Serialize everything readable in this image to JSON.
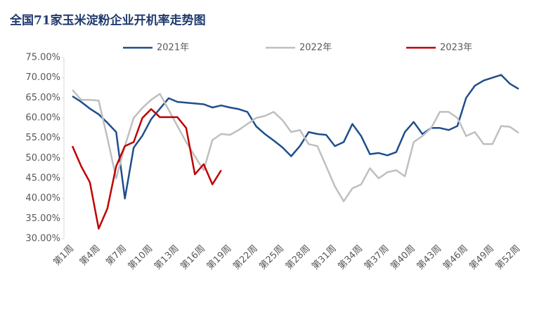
{
  "chart_data": {
    "type": "line",
    "title": "全国71家玉米淀粉企业开机率走势图",
    "categories": [
      "第1周",
      null,
      null,
      "第4周",
      null,
      null,
      "第7周",
      null,
      null,
      "第10周",
      null,
      null,
      "第13周",
      null,
      null,
      "第16周",
      null,
      null,
      "第19周",
      null,
      null,
      "第22周",
      null,
      null,
      "第25周",
      null,
      null,
      "第28周",
      null,
      null,
      "第31周",
      null,
      null,
      "第34周",
      null,
      null,
      "第37周",
      null,
      null,
      "第40周",
      null,
      null,
      "第43周",
      null,
      null,
      "第46周",
      null,
      null,
      "第49周",
      null,
      null,
      "第52周"
    ],
    "series": [
      {
        "name": "2021年",
        "color": "#1f4e8c",
        "values": [
          65.4,
          64.0,
          62.3,
          60.9,
          58.8,
          56.5,
          40.0,
          52.6,
          55.6,
          59.7,
          62.3,
          64.9,
          64.0,
          63.8,
          63.6,
          63.4,
          62.6,
          63.1,
          62.6,
          62.2,
          61.5,
          57.9,
          56.0,
          54.4,
          52.7,
          50.5,
          53.0,
          56.5,
          56.0,
          55.8,
          53.0,
          54.0,
          58.5,
          55.5,
          51.0,
          51.3,
          50.7,
          51.5,
          56.5,
          59.0,
          56.0,
          57.5,
          57.5,
          57.0,
          58.0,
          65.0,
          68.0,
          69.3,
          70.0,
          70.7,
          68.5,
          67.2
        ]
      },
      {
        "name": "2022年",
        "color": "#bfbfbf",
        "values": [
          67.0,
          64.5,
          64.5,
          64.3,
          55.0,
          45.0,
          53.0,
          60.0,
          62.5,
          64.5,
          66.0,
          62.0,
          58.0,
          54.0,
          50.5,
          47.0,
          54.5,
          56.0,
          55.8,
          57.0,
          58.5,
          60.0,
          60.5,
          61.5,
          59.5,
          56.5,
          57.0,
          53.5,
          53.0,
          48.0,
          43.0,
          39.3,
          42.5,
          43.5,
          47.5,
          45.0,
          46.5,
          47.0,
          45.5,
          54.0,
          55.5,
          57.5,
          61.5,
          61.5,
          60.0,
          55.5,
          56.5,
          53.5,
          53.5,
          58.0,
          57.8,
          56.3
        ]
      },
      {
        "name": "2023年",
        "color": "#c00000",
        "values": [
          53.0,
          48.0,
          44.0,
          32.5,
          37.5,
          48.0,
          53.0,
          54.0,
          60.0,
          62.2,
          60.2,
          60.2,
          60.2,
          57.5,
          46.0,
          48.5,
          43.5,
          47.0,
          null,
          null,
          null,
          null,
          null,
          null,
          null,
          null,
          null,
          null,
          null,
          null,
          null,
          null,
          null,
          null,
          null,
          null,
          null,
          null,
          null,
          null,
          null,
          null,
          null,
          null,
          null,
          null,
          null,
          null,
          null,
          null,
          null,
          null
        ]
      }
    ],
    "ylim": [
      30,
      75
    ],
    "yticks": [
      {
        "value": 30,
        "label": "30.00%"
      },
      {
        "value": 35,
        "label": "35.00%"
      },
      {
        "value": 40,
        "label": "40.00%"
      },
      {
        "value": 45,
        "label": "45.00%"
      },
      {
        "value": 50,
        "label": "50.00%"
      },
      {
        "value": 55,
        "label": "55.00%"
      },
      {
        "value": 60,
        "label": "60.00%"
      },
      {
        "value": 65,
        "label": "65.00%"
      },
      {
        "value": 70,
        "label": "70.00%"
      },
      {
        "value": 75,
        "label": "75.00%"
      }
    ],
    "legend": "top",
    "grid": false
  }
}
